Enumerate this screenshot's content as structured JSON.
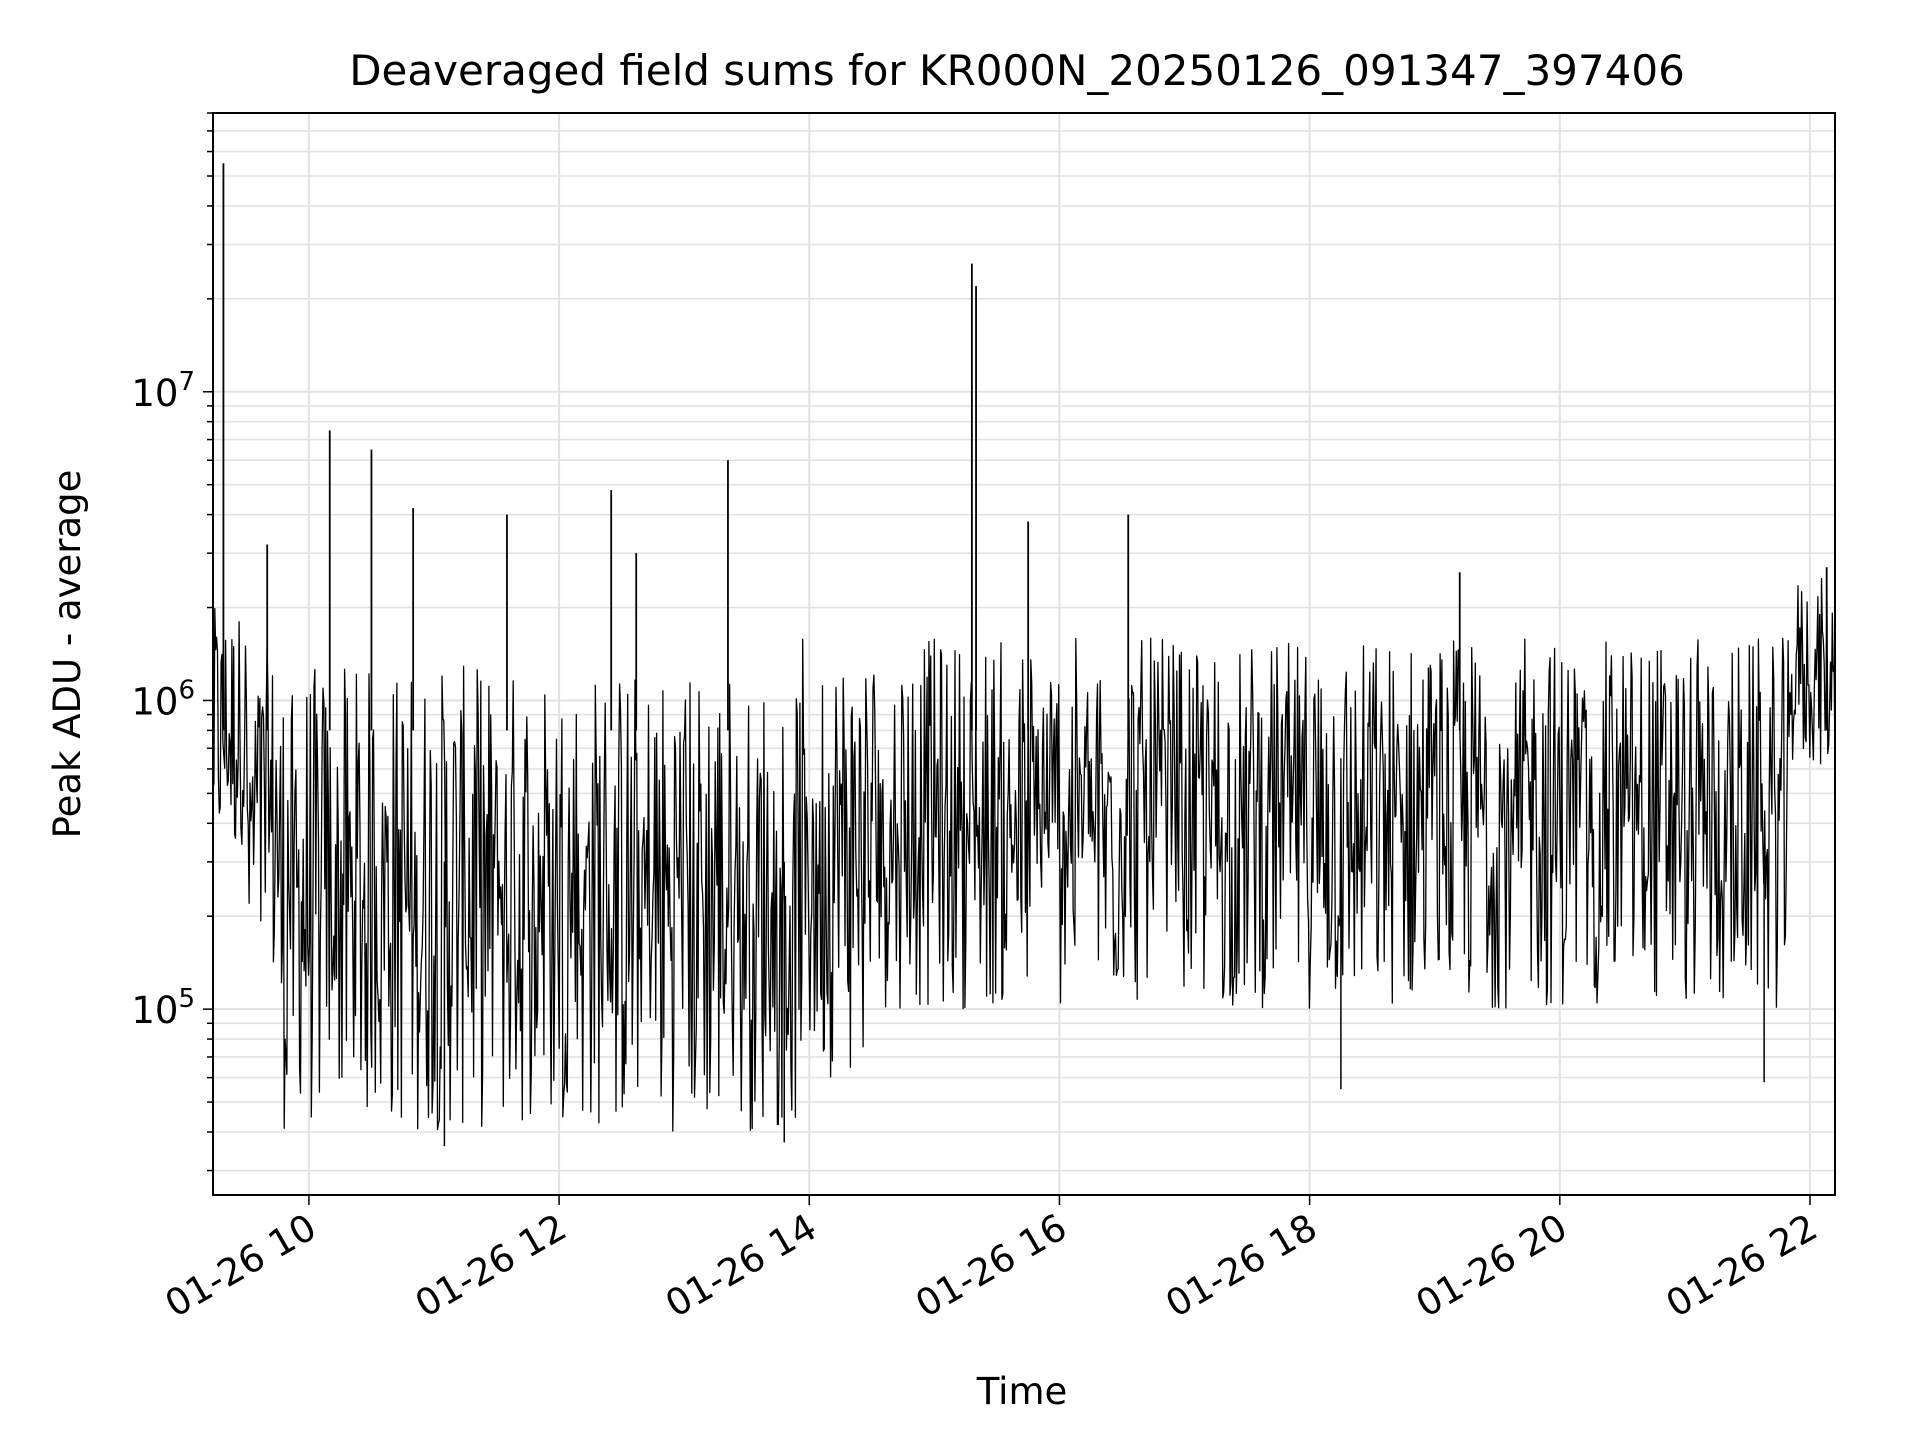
{
  "chart_data": {
    "type": "line",
    "title": "Deaveraged field sums for KR000N_20250126_091347_397406",
    "xlabel": "Time",
    "ylabel": "Peak ADU - average",
    "x_axis": {
      "kind": "time",
      "start": "2025-01-26 09:14",
      "end": "2025-01-26 22:12",
      "ticks": [
        "01-26 10",
        "01-26 12",
        "01-26 14",
        "01-26 16",
        "01-26 18",
        "01-26 20",
        "01-26 22"
      ],
      "tick_hours": [
        10,
        12,
        14,
        16,
        18,
        20,
        22
      ]
    },
    "y_axis": {
      "scale": "log",
      "range": [
        25000,
        80000000
      ],
      "ticks": [
        {
          "base": "10",
          "exp": "5",
          "value": 100000
        },
        {
          "base": "10",
          "exp": "6",
          "value": 1000000
        },
        {
          "base": "10",
          "exp": "7",
          "value": 10000000
        }
      ]
    },
    "grid": true,
    "line_color": "#000000",
    "series": [
      {
        "segments": [
          {
            "start": "2025-01-26 09:14",
            "end": "2025-01-26 09:30",
            "low": 300000,
            "high": 2000000
          },
          {
            "start": "2025-01-26 09:30",
            "end": "2025-01-26 09:45",
            "low": 100000,
            "high": 1500000
          },
          {
            "start": "2025-01-26 09:45",
            "end": "2025-01-26 13:55",
            "low": 40000,
            "high": 1300000
          },
          {
            "start": "2025-01-26 13:55",
            "end": "2025-01-26 14:30",
            "low": 60000,
            "high": 1600000
          },
          {
            "start": "2025-01-26 14:30",
            "end": "2025-01-26 21:50",
            "low": 100000,
            "high": 1600000
          },
          {
            "start": "2025-01-26 21:50",
            "end": "2025-01-26 22:12",
            "low": 600000,
            "high": 2500000
          }
        ],
        "spikes": [
          {
            "time": "2025-01-26 09:19",
            "value": 55000000
          },
          {
            "time": "2025-01-26 09:40",
            "value": 3200000
          },
          {
            "time": "2025-01-26 10:10",
            "value": 7500000
          },
          {
            "time": "2025-01-26 10:30",
            "value": 6500000
          },
          {
            "time": "2025-01-26 10:50",
            "value": 4200000
          },
          {
            "time": "2025-01-26 11:35",
            "value": 4000000
          },
          {
            "time": "2025-01-26 12:25",
            "value": 4800000
          },
          {
            "time": "2025-01-26 12:37",
            "value": 3000000
          },
          {
            "time": "2025-01-26 13:21",
            "value": 6000000
          },
          {
            "time": "2025-01-26 15:18",
            "value": 26000000
          },
          {
            "time": "2025-01-26 15:20",
            "value": 22000000
          },
          {
            "time": "2025-01-26 15:45",
            "value": 3800000
          },
          {
            "time": "2025-01-26 16:33",
            "value": 4000000
          },
          {
            "time": "2025-01-26 19:12",
            "value": 2600000
          },
          {
            "time": "2025-01-26 22:08",
            "value": 2700000
          }
        ],
        "dips": [
          {
            "time": "2025-01-26 11:05",
            "value": 36000
          },
          {
            "time": "2025-01-26 13:48",
            "value": 37000
          },
          {
            "time": "2025-01-26 18:15",
            "value": 55000
          },
          {
            "time": "2025-01-26 21:38",
            "value": 58000
          }
        ]
      }
    ]
  }
}
